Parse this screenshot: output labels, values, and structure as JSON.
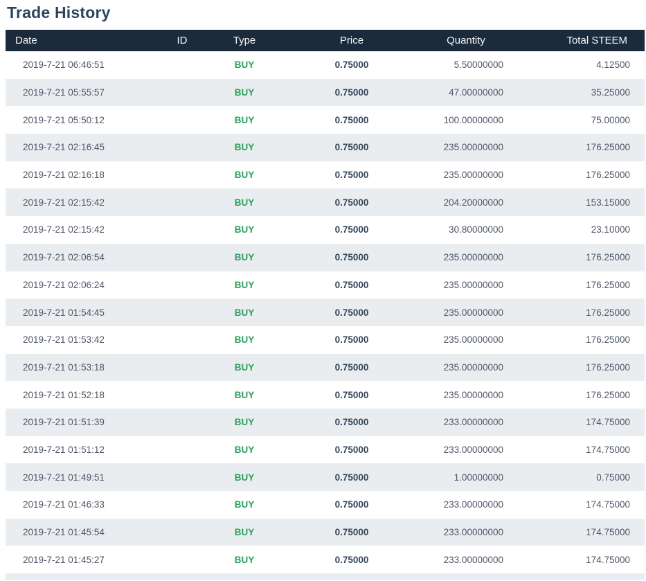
{
  "page": {
    "title": "Trade History"
  },
  "colors": {
    "header_bg": "#1b2b3c",
    "header_text": "#f4f6f8",
    "stripe_bg": "#eaedf0",
    "title_text": "#2b4560",
    "body_text": "#4d5667",
    "price_text": "#36455a",
    "buy_green": "#2ca05a"
  },
  "table": {
    "columns": [
      {
        "key": "date",
        "label": "Date"
      },
      {
        "key": "id",
        "label": "ID"
      },
      {
        "key": "type",
        "label": "Type"
      },
      {
        "key": "price",
        "label": "Price"
      },
      {
        "key": "quantity",
        "label": "Quantity"
      },
      {
        "key": "total",
        "label": "Total STEEM"
      }
    ],
    "rows": [
      {
        "date": "2019-7-21 06:46:51",
        "id": "",
        "type": "BUY",
        "price": "0.75000",
        "quantity": "5.50000000",
        "total": "4.12500"
      },
      {
        "date": "2019-7-21 05:55:57",
        "id": "",
        "type": "BUY",
        "price": "0.75000",
        "quantity": "47.00000000",
        "total": "35.25000"
      },
      {
        "date": "2019-7-21 05:50:12",
        "id": "",
        "type": "BUY",
        "price": "0.75000",
        "quantity": "100.00000000",
        "total": "75.00000"
      },
      {
        "date": "2019-7-21 02:16:45",
        "id": "",
        "type": "BUY",
        "price": "0.75000",
        "quantity": "235.00000000",
        "total": "176.25000"
      },
      {
        "date": "2019-7-21 02:16:18",
        "id": "",
        "type": "BUY",
        "price": "0.75000",
        "quantity": "235.00000000",
        "total": "176.25000"
      },
      {
        "date": "2019-7-21 02:15:42",
        "id": "",
        "type": "BUY",
        "price": "0.75000",
        "quantity": "204.20000000",
        "total": "153.15000"
      },
      {
        "date": "2019-7-21 02:15:42",
        "id": "",
        "type": "BUY",
        "price": "0.75000",
        "quantity": "30.80000000",
        "total": "23.10000"
      },
      {
        "date": "2019-7-21 02:06:54",
        "id": "",
        "type": "BUY",
        "price": "0.75000",
        "quantity": "235.00000000",
        "total": "176.25000"
      },
      {
        "date": "2019-7-21 02:06:24",
        "id": "",
        "type": "BUY",
        "price": "0.75000",
        "quantity": "235.00000000",
        "total": "176.25000"
      },
      {
        "date": "2019-7-21 01:54:45",
        "id": "",
        "type": "BUY",
        "price": "0.75000",
        "quantity": "235.00000000",
        "total": "176.25000"
      },
      {
        "date": "2019-7-21 01:53:42",
        "id": "",
        "type": "BUY",
        "price": "0.75000",
        "quantity": "235.00000000",
        "total": "176.25000"
      },
      {
        "date": "2019-7-21 01:53:18",
        "id": "",
        "type": "BUY",
        "price": "0.75000",
        "quantity": "235.00000000",
        "total": "176.25000"
      },
      {
        "date": "2019-7-21 01:52:18",
        "id": "",
        "type": "BUY",
        "price": "0.75000",
        "quantity": "235.00000000",
        "total": "176.25000"
      },
      {
        "date": "2019-7-21 01:51:39",
        "id": "",
        "type": "BUY",
        "price": "0.75000",
        "quantity": "233.00000000",
        "total": "174.75000"
      },
      {
        "date": "2019-7-21 01:51:12",
        "id": "",
        "type": "BUY",
        "price": "0.75000",
        "quantity": "233.00000000",
        "total": "174.75000"
      },
      {
        "date": "2019-7-21 01:49:51",
        "id": "",
        "type": "BUY",
        "price": "0.75000",
        "quantity": "1.00000000",
        "total": "0.75000"
      },
      {
        "date": "2019-7-21 01:46:33",
        "id": "",
        "type": "BUY",
        "price": "0.75000",
        "quantity": "233.00000000",
        "total": "174.75000"
      },
      {
        "date": "2019-7-21 01:45:54",
        "id": "",
        "type": "BUY",
        "price": "0.75000",
        "quantity": "233.00000000",
        "total": "174.75000"
      },
      {
        "date": "2019-7-21 01:45:27",
        "id": "",
        "type": "BUY",
        "price": "0.75000",
        "quantity": "233.00000000",
        "total": "174.75000"
      }
    ]
  }
}
